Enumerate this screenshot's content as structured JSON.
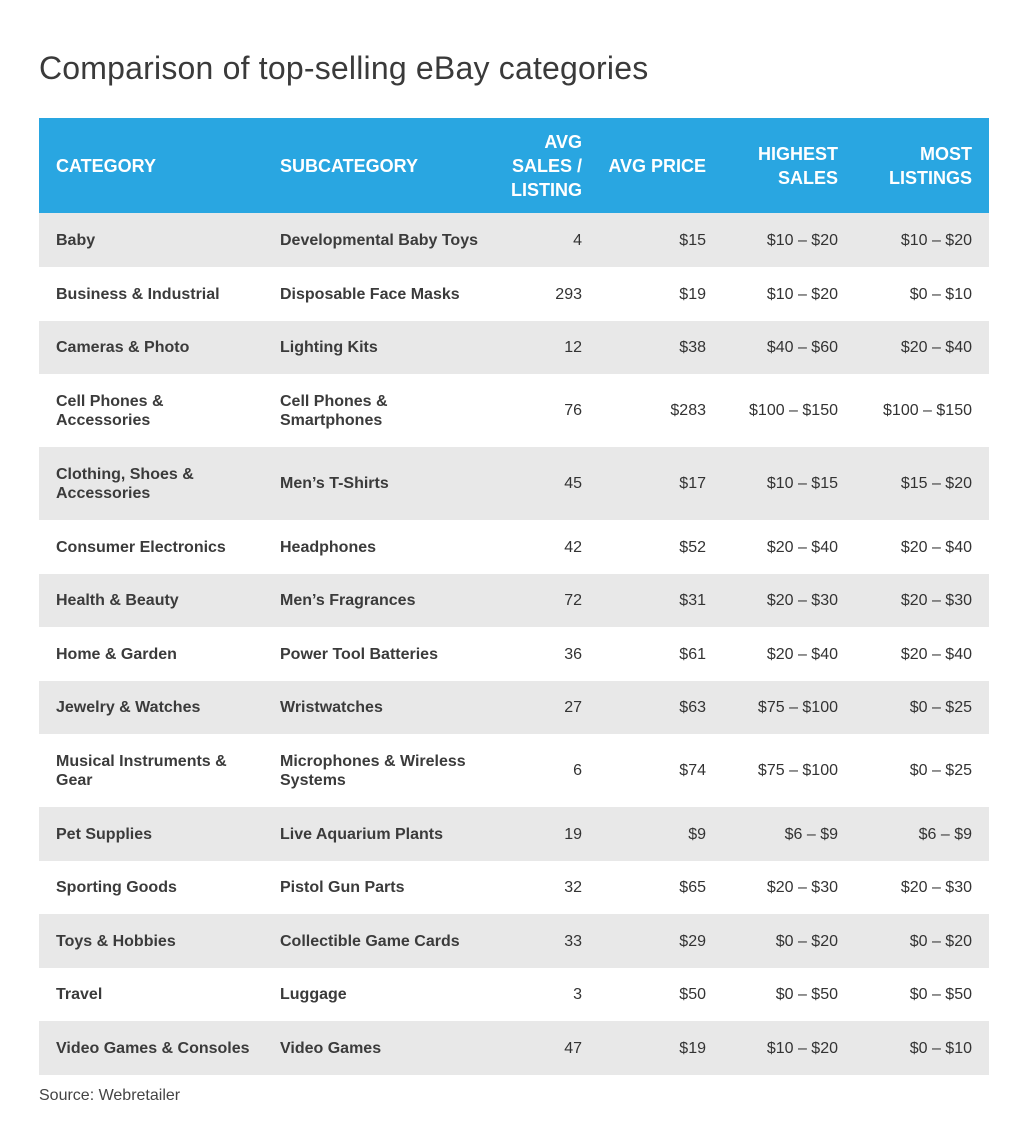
{
  "title": "Comparison of top-selling eBay categories",
  "source": "Source: Webretailer",
  "colors": {
    "header_bg": "#29a6e1",
    "header_text": "#ffffff",
    "stripe_bg": "#e8e8e8"
  },
  "chart_data": {
    "type": "table",
    "title": "Comparison of top-selling eBay categories",
    "columns": [
      "CATEGORY",
      "SUBCATEGORY",
      "AVG SALES / LISTING",
      "AVG PRICE",
      "HIGHEST SALES",
      "MOST LISTINGS"
    ],
    "rows": [
      {
        "category": "Baby",
        "subcategory": "Developmental Baby Toys",
        "avg_sales": "4",
        "avg_price": "$15",
        "highest_sales": "$10 – $20",
        "most_listings": "$10 – $20"
      },
      {
        "category": "Business & Industrial",
        "subcategory": "Disposable Face Masks",
        "avg_sales": "293",
        "avg_price": "$19",
        "highest_sales": "$10 – $20",
        "most_listings": "$0 – $10"
      },
      {
        "category": "Cameras & Photo",
        "subcategory": "Lighting Kits",
        "avg_sales": "12",
        "avg_price": "$38",
        "highest_sales": "$40 – $60",
        "most_listings": "$20 – $40"
      },
      {
        "category": "Cell Phones & Accessories",
        "subcategory": "Cell Phones & Smartphones",
        "avg_sales": "76",
        "avg_price": "$283",
        "highest_sales": "$100 – $150",
        "most_listings": "$100 – $150"
      },
      {
        "category": "Clothing, Shoes & Accessories",
        "subcategory": "Men’s T-Shirts",
        "avg_sales": "45",
        "avg_price": "$17",
        "highest_sales": "$10 – $15",
        "most_listings": "$15 – $20"
      },
      {
        "category": "Consumer Electronics",
        "subcategory": "Headphones",
        "avg_sales": "42",
        "avg_price": "$52",
        "highest_sales": "$20 – $40",
        "most_listings": "$20 – $40"
      },
      {
        "category": "Health & Beauty",
        "subcategory": "Men’s Fragrances",
        "avg_sales": "72",
        "avg_price": "$31",
        "highest_sales": "$20 – $30",
        "most_listings": "$20 – $30"
      },
      {
        "category": "Home & Garden",
        "subcategory": "Power Tool Batteries",
        "avg_sales": "36",
        "avg_price": "$61",
        "highest_sales": "$20 – $40",
        "most_listings": "$20 – $40"
      },
      {
        "category": "Jewelry & Watches",
        "subcategory": "Wristwatches",
        "avg_sales": "27",
        "avg_price": "$63",
        "highest_sales": "$75 – $100",
        "most_listings": "$0 – $25"
      },
      {
        "category": "Musical Instruments & Gear",
        "subcategory": "Microphones & Wireless Systems",
        "avg_sales": "6",
        "avg_price": "$74",
        "highest_sales": "$75 – $100",
        "most_listings": "$0 – $25"
      },
      {
        "category": "Pet Supplies",
        "subcategory": "Live Aquarium Plants",
        "avg_sales": "19",
        "avg_price": "$9",
        "highest_sales": "$6 – $9",
        "most_listings": "$6 – $9"
      },
      {
        "category": "Sporting Goods",
        "subcategory": "Pistol Gun Parts",
        "avg_sales": "32",
        "avg_price": "$65",
        "highest_sales": "$20 – $30",
        "most_listings": "$20 – $30"
      },
      {
        "category": "Toys & Hobbies",
        "subcategory": "Collectible Game Cards",
        "avg_sales": "33",
        "avg_price": "$29",
        "highest_sales": "$0 – $20",
        "most_listings": "$0 – $20"
      },
      {
        "category": "Travel",
        "subcategory": "Luggage",
        "avg_sales": "3",
        "avg_price": "$50",
        "highest_sales": "$0 – $50",
        "most_listings": "$0 – $50"
      },
      {
        "category": "Video Games & Consoles",
        "subcategory": "Video Games",
        "avg_sales": "47",
        "avg_price": "$19",
        "highest_sales": "$10 – $20",
        "most_listings": "$0 – $10"
      }
    ]
  }
}
